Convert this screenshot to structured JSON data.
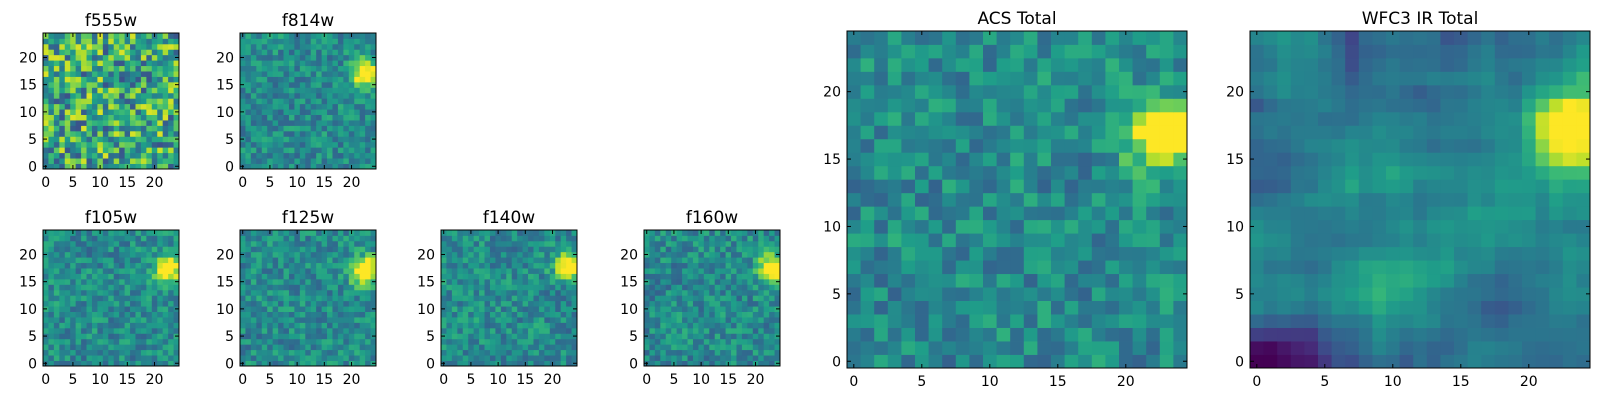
{
  "chart_data": [
    {
      "type": "heatmap",
      "title": "f555w",
      "colormap": "viridis",
      "grid_size": 25,
      "xlim": [
        -0.5,
        24.5
      ],
      "ylim": [
        -0.5,
        24.5
      ],
      "xticks": [
        0,
        5,
        10,
        15,
        20
      ],
      "yticks": [
        0,
        5,
        10,
        15,
        20
      ],
      "pattern": "noise",
      "source_center": [
        23,
        17
      ],
      "noise_seed": 11
    },
    {
      "type": "heatmap",
      "title": "f814w",
      "colormap": "viridis",
      "grid_size": 25,
      "xlim": [
        -0.5,
        24.5
      ],
      "ylim": [
        -0.5,
        24.5
      ],
      "xticks": [
        0,
        5,
        10,
        15,
        20
      ],
      "yticks": [
        0,
        5,
        10,
        15,
        20
      ],
      "pattern": "source",
      "source_center": [
        22.5,
        17
      ],
      "noise_seed": 23
    },
    {
      "type": "heatmap",
      "title": "f105w",
      "colormap": "viridis",
      "grid_size": 25,
      "xlim": [
        -0.5,
        24.5
      ],
      "ylim": [
        -0.5,
        24.5
      ],
      "xticks": [
        0,
        5,
        10,
        15,
        20
      ],
      "yticks": [
        0,
        5,
        10,
        15,
        20
      ],
      "pattern": "source",
      "source_center": [
        22.5,
        17.5
      ],
      "noise_seed": 37
    },
    {
      "type": "heatmap",
      "title": "f125w",
      "colormap": "viridis",
      "grid_size": 25,
      "xlim": [
        -0.5,
        24.5
      ],
      "ylim": [
        -0.5,
        24.5
      ],
      "xticks": [
        0,
        5,
        10,
        15,
        20
      ],
      "yticks": [
        0,
        5,
        10,
        15,
        20
      ],
      "pattern": "source",
      "source_center": [
        22.5,
        17
      ],
      "noise_seed": 41
    },
    {
      "type": "heatmap",
      "title": "f140w",
      "colormap": "viridis",
      "grid_size": 25,
      "xlim": [
        -0.5,
        24.5
      ],
      "ylim": [
        -0.5,
        24.5
      ],
      "xticks": [
        0,
        5,
        10,
        15,
        20
      ],
      "yticks": [
        0,
        5,
        10,
        15,
        20
      ],
      "pattern": "source",
      "source_center": [
        23,
        18
      ],
      "noise_seed": 53
    },
    {
      "type": "heatmap",
      "title": "f160w",
      "colormap": "viridis",
      "grid_size": 25,
      "xlim": [
        -0.5,
        24.5
      ],
      "ylim": [
        -0.5,
        24.5
      ],
      "xticks": [
        0,
        5,
        10,
        15,
        20
      ],
      "yticks": [
        0,
        5,
        10,
        15,
        20
      ],
      "pattern": "source",
      "source_center": [
        23,
        17.5
      ],
      "noise_seed": 67
    },
    {
      "type": "heatmap",
      "title": "ACS Total",
      "colormap": "viridis",
      "grid_size": 25,
      "xlim": [
        -0.5,
        24.5
      ],
      "ylim": [
        -0.5,
        24.5
      ],
      "xticks": [
        0,
        5,
        10,
        15,
        20
      ],
      "yticks": [
        0,
        5,
        10,
        15,
        20
      ],
      "pattern": "source",
      "source_center": [
        22.8,
        17
      ],
      "noise_seed": 79
    },
    {
      "type": "heatmap",
      "title": "WFC3 IR Total",
      "colormap": "viridis",
      "grid_size": 25,
      "xlim": [
        -0.5,
        24.5
      ],
      "ylim": [
        -0.5,
        24.5
      ],
      "xticks": [
        0,
        5,
        10,
        15,
        20
      ],
      "yticks": [
        0,
        5,
        10,
        15,
        20
      ],
      "pattern": "smooth",
      "source_center": [
        23,
        17.5
      ],
      "noise_seed": 97
    }
  ]
}
